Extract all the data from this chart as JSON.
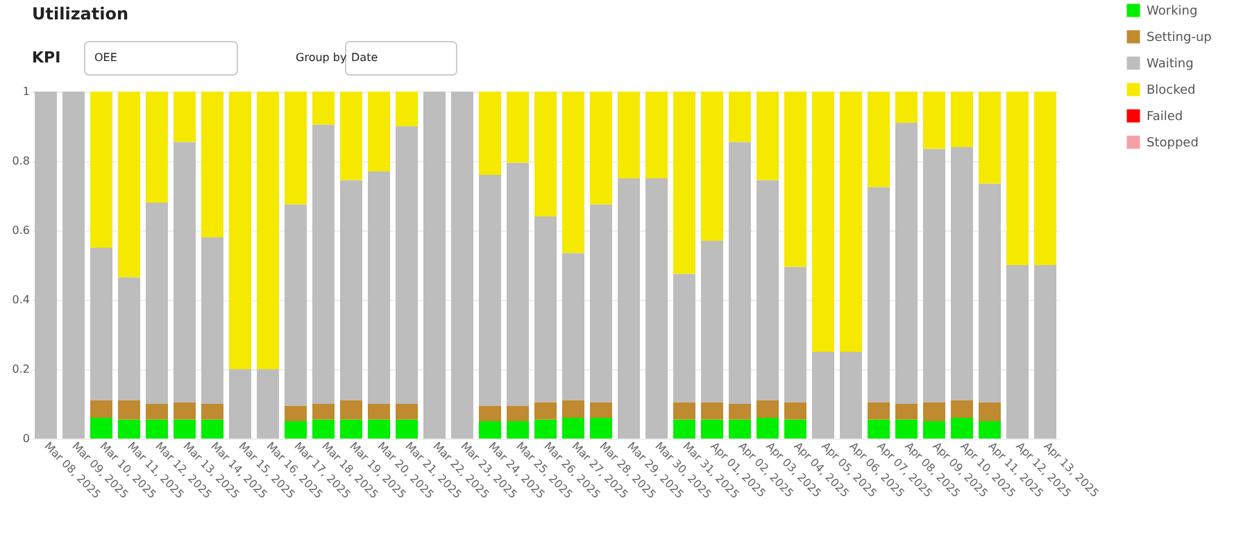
{
  "chart_data": {
    "type": "bar",
    "title": "Utilization",
    "annotations": [
      "KPI",
      "OEE",
      "Group by",
      "Date"
    ],
    "categories": [
      "Mar 08, 2025",
      "Mar 09, 2025",
      "Mar 10, 2025",
      "Mar 11, 2025",
      "Mar 12, 2025",
      "Mar 13, 2025",
      "Mar 14, 2025",
      "Mar 15, 2025",
      "Mar 16, 2025",
      "Mar 17, 2025",
      "Mar 18, 2025",
      "Mar 19, 2025",
      "Mar 20, 2025",
      "Mar 21, 2025",
      "Mar 22, 2025",
      "Mar 23, 2025",
      "Mar 24, 2025",
      "Mar 25, 2025",
      "Mar 26, 2025",
      "Mar 27, 2025",
      "Mar 28, 2025",
      "Mar 29, 2025",
      "Mar 30, 2025",
      "Mar 31, 2025",
      "Apr 01, 2025",
      "Apr 02, 2025",
      "Apr 03, 2025",
      "Apr 04, 2025",
      "Apr 05, 2025",
      "Apr 06, 2025",
      "Apr 07, 2025",
      "Apr 08, 2025",
      "Apr 09, 2025",
      "Apr 10, 2025",
      "Apr 11, 2025",
      "Apr 12, 2025",
      "Apr 13, 2025"
    ],
    "stacked": true,
    "series": [
      {
        "name": "Working",
        "color": "#00ee00",
        "values": [
          0,
          0,
          0.06,
          0.055,
          0.055,
          0.055,
          0.055,
          0,
          0,
          0.05,
          0.055,
          0.055,
          0.055,
          0.055,
          0,
          0,
          0.05,
          0.05,
          0.055,
          0.06,
          0.06,
          0,
          0,
          0.055,
          0.055,
          0.055,
          0.06,
          0.055,
          0,
          0,
          0.055,
          0.055,
          0.05,
          0.06,
          0.05,
          0,
          0
        ]
      },
      {
        "name": "Setting-up",
        "color": "#bf8a30",
        "values": [
          0,
          0,
          0.05,
          0.055,
          0.045,
          0.05,
          0.045,
          0,
          0,
          0.045,
          0.045,
          0.055,
          0.045,
          0.045,
          0,
          0,
          0.045,
          0.045,
          0.05,
          0.05,
          0.045,
          0,
          0,
          0.05,
          0.05,
          0.045,
          0.05,
          0.05,
          0,
          0,
          0.05,
          0.045,
          0.055,
          0.05,
          0.055,
          0,
          0
        ]
      },
      {
        "name": "Waiting",
        "color": "#bdbdbd",
        "values": [
          1,
          1,
          0.44,
          0.355,
          0.58,
          0.75,
          0.48,
          0.2,
          0.2,
          0.58,
          0.805,
          0.635,
          0.67,
          0.8,
          1,
          1,
          0.665,
          0.7,
          0.535,
          0.425,
          0.57,
          0.75,
          0.75,
          0.37,
          0.465,
          0.755,
          0.635,
          0.39,
          0.25,
          0.25,
          0.62,
          0.81,
          0.73,
          0.73,
          0.63,
          0.5,
          0.5
        ]
      },
      {
        "name": "Blocked",
        "color": "#f5e900",
        "values": [
          0,
          0,
          0.45,
          0.535,
          0.32,
          0.145,
          0.42,
          0.8,
          0.8,
          0.325,
          0.095,
          0.255,
          0.23,
          0.1,
          0,
          0,
          0.24,
          0.205,
          0.36,
          0.465,
          0.325,
          0.25,
          0.25,
          0.525,
          0.43,
          0.145,
          0.255,
          0.505,
          0.75,
          0.75,
          0.275,
          0.09,
          0.165,
          0.16,
          0.265,
          0.5,
          0.5
        ]
      },
      {
        "name": "Failed",
        "color": "#ff0000",
        "values": [
          0,
          0,
          0,
          0,
          0,
          0,
          0,
          0,
          0,
          0,
          0,
          0,
          0,
          0,
          0,
          0,
          0,
          0,
          0,
          0,
          0,
          0,
          0,
          0,
          0,
          0,
          0,
          0,
          0,
          0,
          0,
          0,
          0,
          0,
          0,
          0,
          0
        ]
      },
      {
        "name": "Stopped",
        "color": "#f4a0a8",
        "values": [
          0,
          0,
          0,
          0,
          0,
          0,
          0,
          0,
          0,
          0,
          0,
          0,
          0,
          0,
          0,
          0,
          0,
          0,
          0,
          0,
          0,
          0,
          0,
          0,
          0,
          0,
          0,
          0,
          0,
          0,
          0,
          0,
          0,
          0,
          0,
          0,
          0
        ]
      }
    ],
    "ylim": [
      0,
      1
    ],
    "yticks": [
      0,
      0.2,
      0.4,
      0.6,
      0.8,
      1
    ],
    "grid": "y",
    "legend": "top right"
  }
}
